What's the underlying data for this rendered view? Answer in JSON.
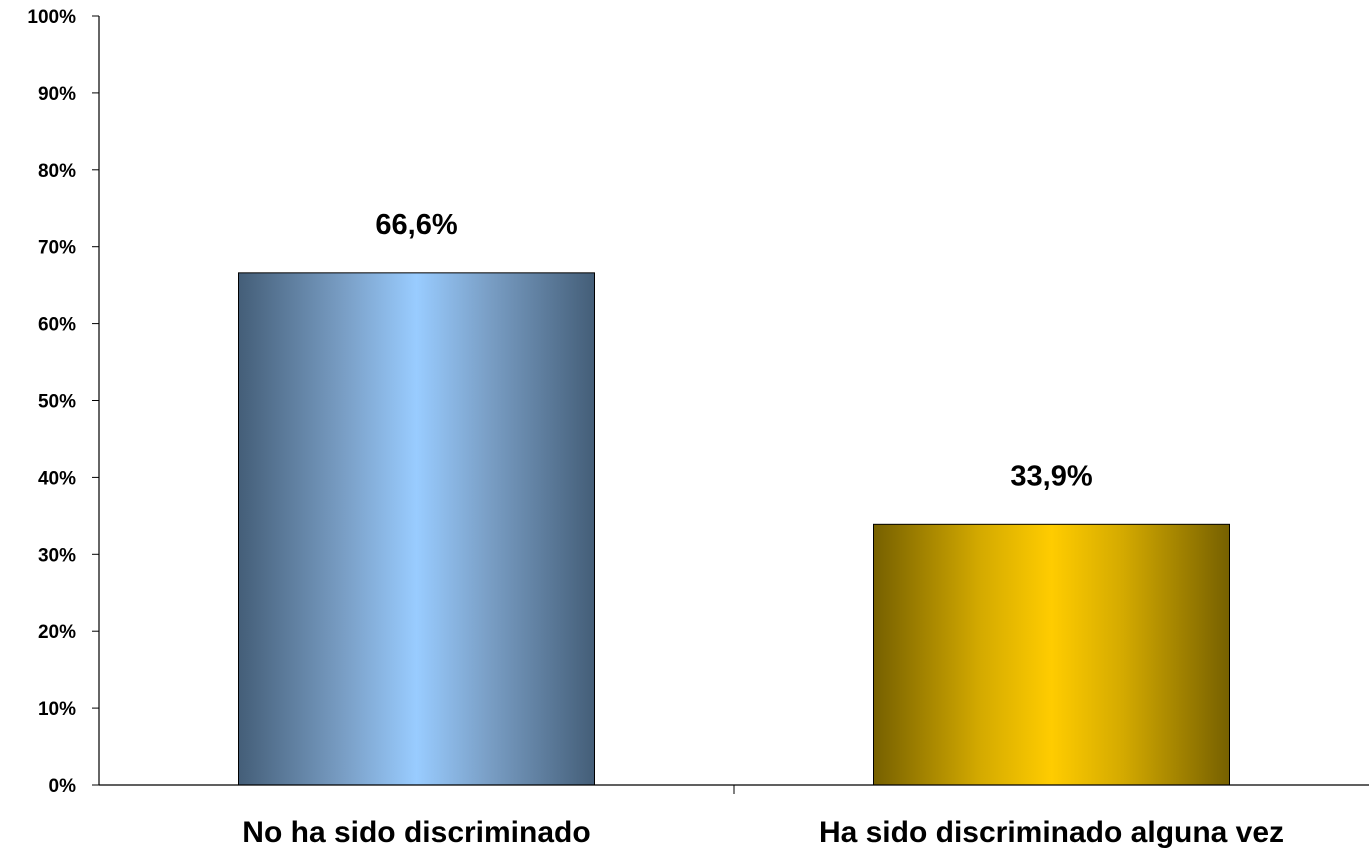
{
  "chart_data": {
    "type": "bar",
    "categories": [
      "No ha sido discriminado",
      "Ha sido discriminado alguna vez"
    ],
    "values": [
      66.6,
      33.9
    ],
    "data_labels": [
      "66,6%",
      "33,9%"
    ],
    "ylim": [
      0,
      100
    ],
    "y_ticks": [
      0,
      10,
      20,
      30,
      40,
      50,
      60,
      70,
      80,
      90,
      100
    ],
    "y_tick_labels": [
      "0%",
      "10%",
      "20%",
      "30%",
      "40%",
      "50%",
      "60%",
      "70%",
      "80%",
      "90%",
      "100%"
    ],
    "grid": false,
    "legend": "none",
    "bar_colors": [
      {
        "edge": "#445e78",
        "mid": "#7a9fc6",
        "center": "#99ccff"
      },
      {
        "edge": "#766000",
        "mid": "#d4aa00",
        "center": "#ffcc00"
      }
    ],
    "axis_color": "#000000"
  }
}
